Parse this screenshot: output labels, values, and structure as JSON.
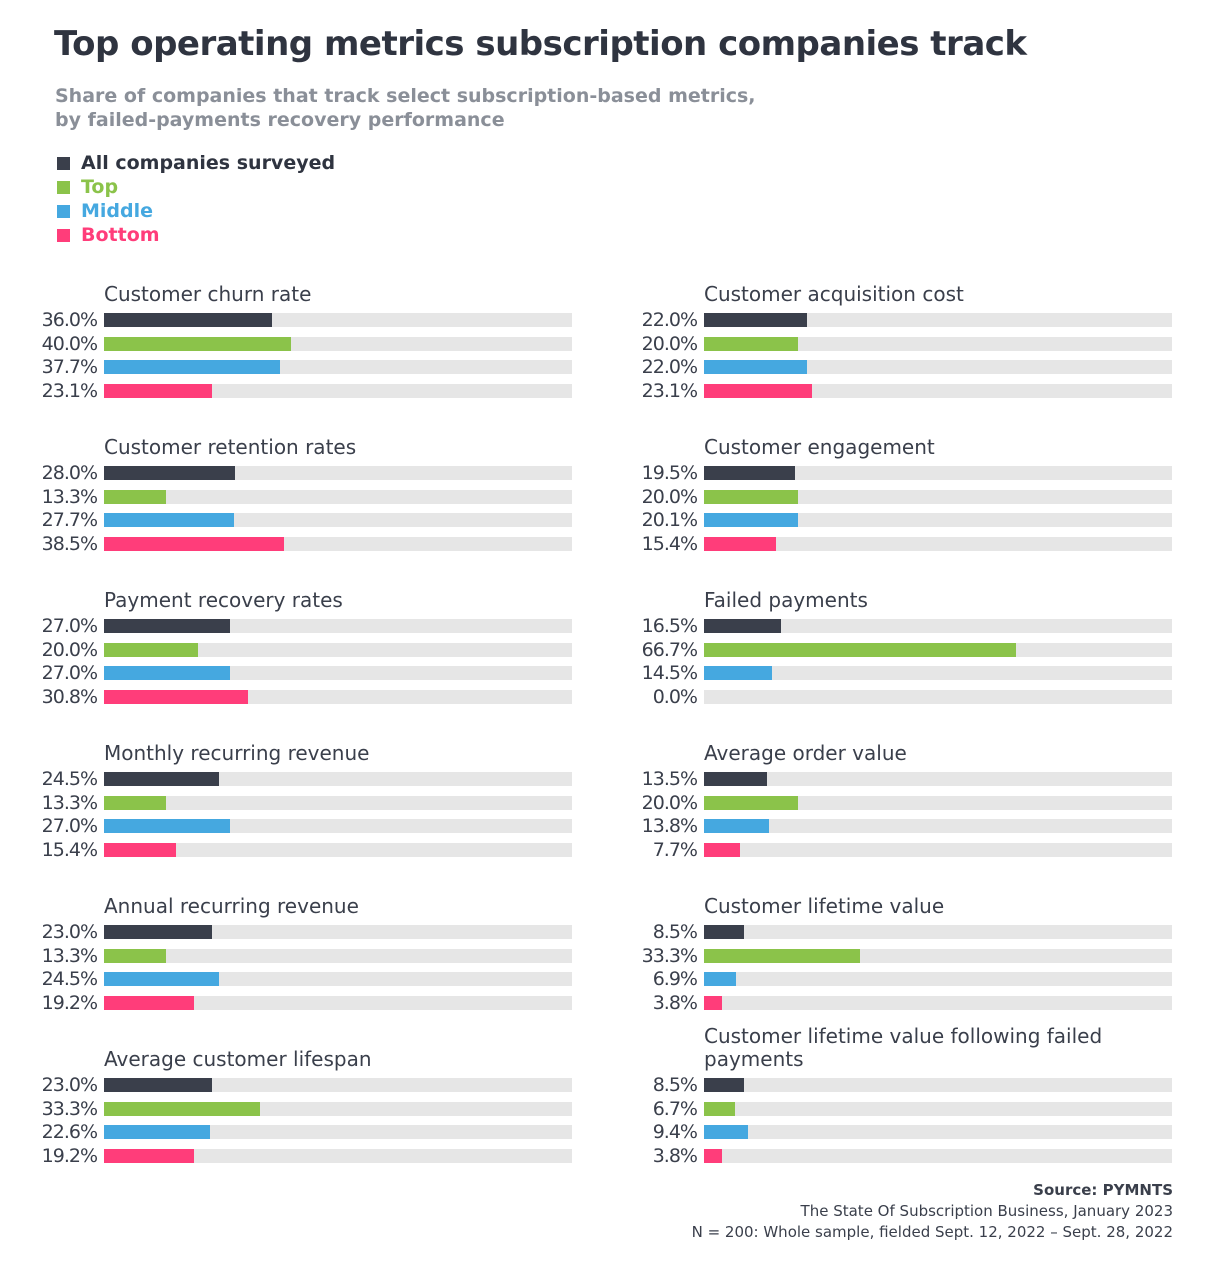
{
  "chart_data": {
    "type": "bar",
    "orientation": "horizontal",
    "title": "Top operating metrics subscription companies track",
    "subtitle": [
      "Share of companies that track select subscription-based metrics,",
      "by failed-payments recovery performance"
    ],
    "xlim": [
      0,
      100
    ],
    "unit": "%",
    "legend_placement": "top-left",
    "series": [
      {
        "name": "All companies surveyed",
        "color": "#3a3f4b"
      },
      {
        "name": "Top",
        "color": "#8bc34a"
      },
      {
        "name": "Middle",
        "color": "#45a8e0"
      },
      {
        "name": "Bottom",
        "color": "#ff3d7a"
      }
    ],
    "track_color": "#e6e6e6",
    "panels": [
      {
        "title": "Customer churn rate",
        "values": [
          36.0,
          40.0,
          37.7,
          23.1
        ],
        "labels": [
          "36.0%",
          "40.0%",
          "37.7%",
          "23.1%"
        ]
      },
      {
        "title": "Customer acquisition cost",
        "values": [
          22.0,
          20.0,
          22.0,
          23.1
        ],
        "labels": [
          "22.0%",
          "20.0%",
          "22.0%",
          "23.1%"
        ]
      },
      {
        "title": "Customer retention rates",
        "values": [
          28.0,
          13.3,
          27.7,
          38.5
        ],
        "labels": [
          "28.0%",
          "13.3%",
          "27.7%",
          "38.5%"
        ]
      },
      {
        "title": "Customer engagement",
        "values": [
          19.5,
          20.0,
          20.1,
          15.4
        ],
        "labels": [
          "19.5%",
          "20.0%",
          "20.1%",
          "15.4%"
        ]
      },
      {
        "title": "Payment recovery rates",
        "values": [
          27.0,
          20.0,
          27.0,
          30.8
        ],
        "labels": [
          "27.0%",
          "20.0%",
          "27.0%",
          "30.8%"
        ]
      },
      {
        "title": "Failed payments",
        "values": [
          16.5,
          66.7,
          14.5,
          0.0
        ],
        "labels": [
          "16.5%",
          "66.7%",
          "14.5%",
          "0.0%"
        ]
      },
      {
        "title": "Monthly recurring revenue",
        "values": [
          24.5,
          13.3,
          27.0,
          15.4
        ],
        "labels": [
          "24.5%",
          "13.3%",
          "27.0%",
          "15.4%"
        ]
      },
      {
        "title": "Average order value",
        "values": [
          13.5,
          20.0,
          13.8,
          7.7
        ],
        "labels": [
          "13.5%",
          "20.0%",
          "13.8%",
          "7.7%"
        ]
      },
      {
        "title": "Annual recurring revenue",
        "values": [
          23.0,
          13.3,
          24.5,
          19.2
        ],
        "labels": [
          "23.0%",
          "13.3%",
          "24.5%",
          "19.2%"
        ]
      },
      {
        "title": "Customer lifetime value",
        "values": [
          8.5,
          33.3,
          6.9,
          3.8
        ],
        "labels": [
          "8.5%",
          "33.3%",
          "6.9%",
          "3.8%"
        ]
      },
      {
        "title": "Average customer lifespan",
        "values": [
          23.0,
          33.3,
          22.6,
          19.2
        ],
        "labels": [
          "23.0%",
          "33.3%",
          "22.6%",
          "19.2%"
        ]
      },
      {
        "title": "Customer lifetime value following failed payments",
        "values": [
          8.5,
          6.7,
          9.4,
          3.8
        ],
        "labels": [
          "8.5%",
          "6.7%",
          "9.4%",
          "3.8%"
        ]
      }
    ]
  },
  "source": {
    "label": "Source: PYMNTS",
    "line1": "The State Of Subscription Business, January 2023",
    "line2": "N = 200: Whole sample, fielded Sept. 12, 2022 – Sept. 28, 2022"
  }
}
